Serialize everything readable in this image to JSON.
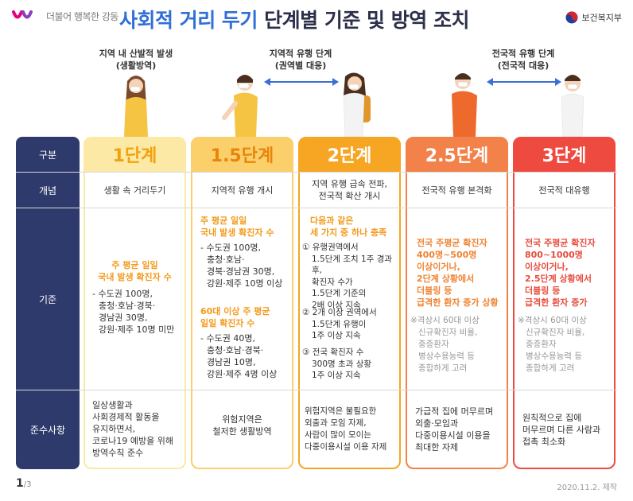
{
  "header": {
    "logo_text": "더불어 행복한 강동",
    "title_highlight": "사회적 거리 두기",
    "title_rest": "단계별 기준 및 방역 조치",
    "ministry": "보건복지부"
  },
  "stages_annotation": {
    "local_sporadic": [
      "지역 내 산발적 발생",
      "(생활방역)"
    ],
    "local_epidemic": [
      "지역적 유행 단계",
      "(권역별 대응)"
    ],
    "national_epidemic": [
      "전국적 유행 단계",
      "(전국적 대응)"
    ]
  },
  "table": {
    "row_headers": {
      "division": "구분",
      "concept": "개념",
      "criteria": "기준",
      "compliance": "준수사항"
    },
    "levels": [
      {
        "label": "1단계",
        "color": "#fde9a6",
        "text_color": "#f0a20c",
        "concept": "생활 속 거리두기",
        "criteria_head": [
          "주 평균 일일",
          "국내 발생 확진자 수"
        ],
        "criteria_list": [
          "- 수도권 100명,",
          "충청·호남·경북·",
          "경남권 30명,",
          "강원·제주 10명 미만"
        ],
        "compliance": [
          "일상생활과",
          "사회경제적 활동을",
          "유지하면서,",
          "코로나19 예방을 위해",
          "방역수칙 준수"
        ]
      },
      {
        "label": "1.5단계",
        "color": "#fbcf6a",
        "text_color": "#e8850c",
        "concept": "지역적 유행 개시",
        "criteria_head": [
          "주 평균 일일",
          "국내 발생 확진자 수"
        ],
        "criteria_list": [
          "- 수도권 100명,",
          "충청·호남·",
          "경북·경남권 30명,",
          "강원·제주 10명 이상"
        ],
        "criteria_head2": [
          "60대 이상 주 평균",
          "일일 확진자 수"
        ],
        "criteria_list2": [
          "- 수도권 40명,",
          "충청·호남·경북·",
          "경남권 10명,",
          "강원·제주 4명 이상"
        ],
        "compliance": [
          "위험지역은",
          "철저한 생활방역"
        ]
      },
      {
        "label": "2단계",
        "color": "#f6a623",
        "text_color": "#ffffff",
        "concept": [
          "지역 유행 급속 전파,",
          "전국적 확산 개시"
        ],
        "criteria_head": [
          "다음과 같은",
          "세 가지 중 하나 충족"
        ],
        "criteria_items": [
          [
            "① 유행권역에서",
            "1.5단계 조치 1주 경과 후,",
            "확진자 수가",
            "1.5단계 기준의",
            "2배 이상 지속"
          ],
          [
            "② 2개 이상 권역에서",
            "1.5단계 유행이",
            "1주 이상 지속"
          ],
          [
            "③ 전국 확진자 수",
            "300명 초과 상황",
            "1주 이상 지속"
          ]
        ],
        "compliance": [
          "위험지역은 불필요한",
          "외출과 모임 자제,",
          "사람이 많이 모이는",
          "다중이용시설 이용 자제"
        ]
      },
      {
        "label": "2.5단계",
        "color": "#f2814a",
        "text_color": "#ffffff",
        "concept": "전국적 유행 본격화",
        "criteria_head": [
          "전국 주평균 확진자",
          "400명~500명",
          "이상이거나,",
          "2단계 상황에서",
          "더블링 등",
          "급격한 환자 증가 상황"
        ],
        "criteria_note": [
          "※격상시 60대 이상",
          "신규확진자 비율,",
          "중증환자",
          "병상수용능력 등",
          "종합하게 고려"
        ],
        "compliance": [
          "가급적 집에 머무르며",
          "외출·모임과",
          "다중이용시설 이용을",
          "최대한 자제"
        ]
      },
      {
        "label": "3단계",
        "color": "#ee4a3f",
        "text_color": "#ffffff",
        "concept": "전국적 대유행",
        "criteria_head": [
          "전국 주평균 확진자",
          "800~1000명",
          "이상이거나,",
          "2.5단계 상황에서",
          "더블링 등",
          "급격한 환자 증가"
        ],
        "criteria_note": [
          "※격상시 60대 이상",
          "신규확진자 비율,",
          "중증환자",
          "병상수용능력 등",
          "종합하게 고려"
        ],
        "compliance": [
          "원칙적으로 집에",
          "머무르며 다른 사람과",
          "접촉 최소화"
        ]
      }
    ]
  },
  "footer": {
    "page": "1",
    "page_total": "/3",
    "date": "2020.11.2. 제작"
  }
}
